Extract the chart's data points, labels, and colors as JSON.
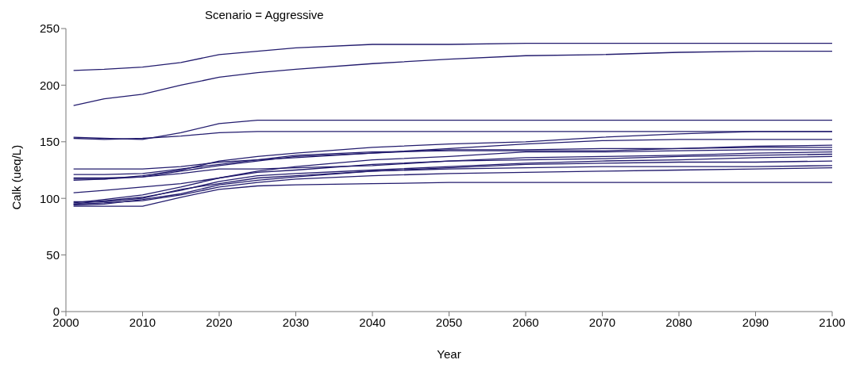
{
  "chart_data": {
    "type": "line",
    "title": "Scenario = Aggressive",
    "xlabel": "Year",
    "ylabel": "Calk  (ueq/L)",
    "x": [
      2001,
      2005,
      2010,
      2015,
      2020,
      2025,
      2030,
      2040,
      2050,
      2060,
      2070,
      2080,
      2090,
      2100
    ],
    "series": [
      {
        "color": "#231c6e",
        "values": [
          213,
          214,
          216,
          220,
          227,
          230,
          233,
          236,
          236,
          237,
          237,
          237,
          237,
          237
        ]
      },
      {
        "color": "#231c6e",
        "values": [
          182,
          188,
          192,
          200,
          207,
          211,
          214,
          219,
          223,
          226,
          227,
          229,
          230,
          230
        ]
      },
      {
        "color": "#231c6e",
        "values": [
          154,
          153,
          152,
          158,
          166,
          169,
          169,
          169,
          169,
          169,
          169,
          169,
          169,
          169
        ]
      },
      {
        "color": "#231c6e",
        "values": [
          153,
          152,
          153,
          155,
          158,
          159,
          159,
          159,
          159,
          159,
          159,
          159,
          159,
          159
        ]
      },
      {
        "color": "#231c6e",
        "values": [
          126,
          126,
          126,
          128,
          132,
          134,
          136,
          140,
          144,
          148,
          151,
          152,
          152,
          152
        ]
      },
      {
        "color": "#231c6e",
        "values": [
          116,
          117,
          120,
          125,
          133,
          137,
          140,
          145,
          148,
          150,
          154,
          157,
          159,
          159
        ]
      },
      {
        "color": "#231c6e",
        "values": [
          121,
          121,
          122,
          126,
          130,
          134,
          138,
          141,
          142,
          142,
          142,
          144,
          146,
          147
        ]
      },
      {
        "color": "#231c6e",
        "values": [
          118,
          118,
          119,
          124,
          129,
          133,
          137,
          140,
          143,
          143,
          144,
          144,
          145,
          145
        ]
      },
      {
        "color": "#231c6e",
        "values": [
          105,
          107,
          110,
          113,
          118,
          124,
          128,
          134,
          137,
          141,
          141,
          142,
          143,
          143
        ]
      },
      {
        "color": "#231c6e",
        "values": [
          117,
          117,
          119,
          122,
          126,
          126,
          127,
          129,
          133,
          136,
          137,
          138,
          140,
          141
        ]
      },
      {
        "color": "#231c6e",
        "values": [
          96,
          99,
          103,
          110,
          118,
          123,
          125,
          130,
          133,
          134,
          135,
          137,
          138,
          139
        ]
      },
      {
        "color": "#231c6e",
        "values": [
          95,
          98,
          101,
          107,
          115,
          120,
          122,
          125,
          128,
          131,
          133,
          134,
          136,
          137
        ]
      },
      {
        "color": "#231c6e",
        "values": [
          97,
          97,
          100,
          108,
          113,
          118,
          120,
          124,
          127,
          130,
          131,
          132,
          132,
          133
        ]
      },
      {
        "color": "#231c6e",
        "values": [
          94,
          95,
          99,
          104,
          112,
          116,
          119,
          124,
          126,
          127,
          128,
          128,
          128,
          129
        ]
      },
      {
        "color": "#231c6e",
        "values": [
          95,
          96,
          98,
          103,
          110,
          114,
          117,
          120,
          122,
          123,
          124,
          125,
          126,
          127
        ]
      },
      {
        "color": "#231c6e",
        "values": [
          93,
          93,
          93,
          101,
          108,
          111,
          112,
          113,
          114,
          114,
          114,
          114,
          114,
          114
        ]
      }
    ],
    "xlim": [
      2000,
      2100
    ],
    "xticks": [
      2000,
      2010,
      2020,
      2030,
      2040,
      2050,
      2060,
      2070,
      2080,
      2090,
      2100
    ],
    "ylim": [
      0,
      250
    ],
    "yticks": [
      0,
      50,
      100,
      150,
      200,
      250
    ],
    "grid": false,
    "legend": false,
    "marker": "none",
    "line_style": "solid"
  }
}
